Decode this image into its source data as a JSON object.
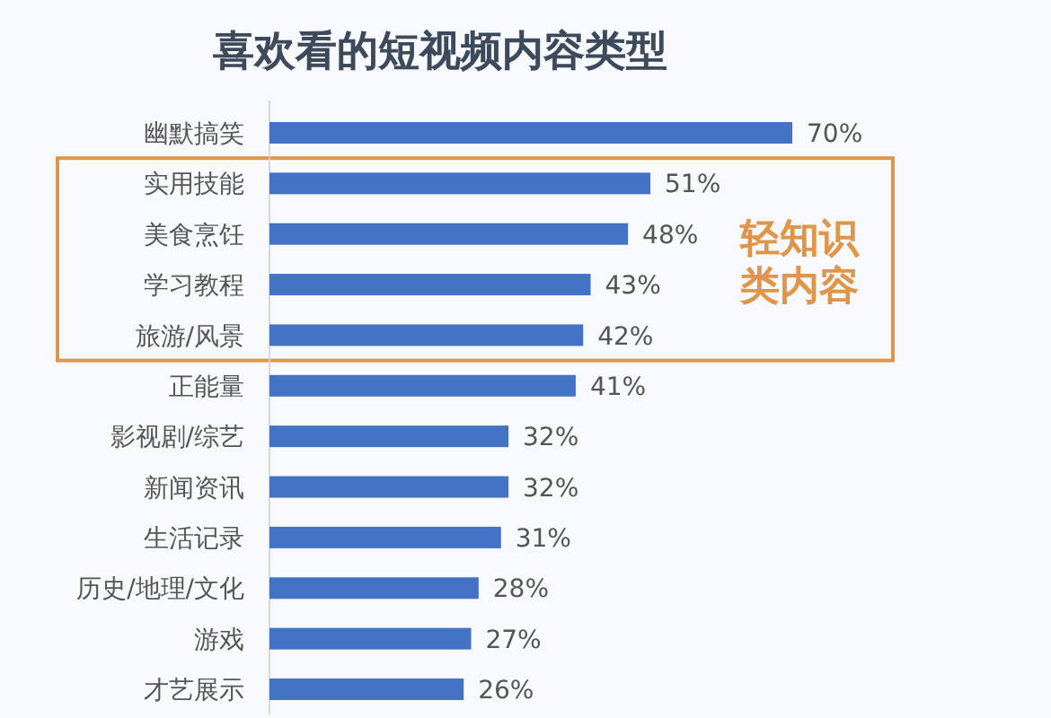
{
  "chart_data": {
    "type": "bar",
    "orientation": "horizontal",
    "title": "喜欢看的短视频内容类型",
    "categories": [
      "幽默搞笑",
      "实用技能",
      "美食烹饪",
      "学习教程",
      "旅游/风景",
      "正能量",
      "影视剧/综艺",
      "新闻资讯",
      "生活记录",
      "历史/地理/文化",
      "游戏",
      "才艺展示"
    ],
    "values": [
      70,
      51,
      48,
      43,
      42,
      41,
      32,
      32,
      31,
      28,
      27,
      26
    ],
    "value_labels": [
      "70%",
      "51%",
      "48%",
      "43%",
      "42%",
      "41%",
      "32%",
      "32%",
      "31%",
      "28%",
      "27%",
      "26%"
    ],
    "color": "#4472c4",
    "tick_labels": "y",
    "annotations": [
      "轻知识类内容"
    ]
  }
}
